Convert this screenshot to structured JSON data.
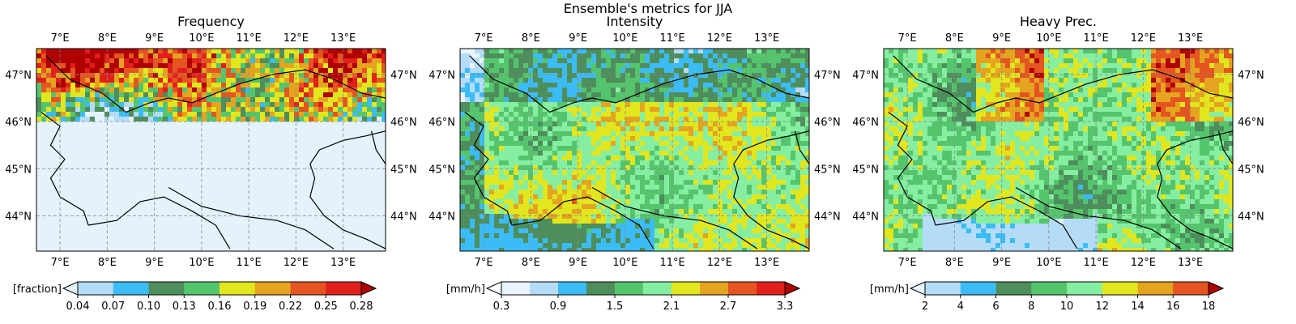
{
  "figure_title": "Ensemble's metrics for JJA",
  "chart_data": [
    {
      "type": "heatmap",
      "title": "Frequency",
      "colorbar_label": "[fraction]",
      "colorbar_ticks": [
        "0.04",
        "0.07",
        "0.10",
        "0.13",
        "0.16",
        "0.19",
        "0.22",
        "0.25",
        "0.28"
      ],
      "colorbar_colors": [
        "#b4dcf7",
        "#3cbcf6",
        "#4e8e5c",
        "#55c56d",
        "#e2e61e",
        "#e4a41f",
        "#e45522",
        "#e21f1b"
      ],
      "colorbar_under": "#e3f2fb",
      "colorbar_over": "#b00000",
      "lon_ticks": [
        "7°E",
        "8°E",
        "9°E",
        "10°E",
        "11°E",
        "12°E",
        "13°E"
      ],
      "lat_ticks": [
        "47°N",
        "46°N",
        "45°N",
        "44°N"
      ],
      "xlim": [
        6.5,
        13.9
      ],
      "ylim": [
        43.25,
        47.55
      ],
      "grid": true
    },
    {
      "type": "heatmap",
      "title": "Intensity",
      "colorbar_label": "[mm/h]",
      "colorbar_ticks": [
        "0.3",
        "0.9",
        "1.5",
        "2.1",
        "2.7",
        "3.3"
      ],
      "colorbar_colors": [
        "#e8f5fc",
        "#b4dcf7",
        "#3cbcf6",
        "#4e8e5c",
        "#55c56d",
        "#86eea0",
        "#e2e61e",
        "#e4a41f",
        "#e45522",
        "#e21f1b"
      ],
      "colorbar_under": "#ffffff",
      "colorbar_over": "#b00000",
      "lon_ticks": [
        "7°E",
        "8°E",
        "9°E",
        "10°E",
        "11°E",
        "12°E",
        "13°E"
      ],
      "lat_ticks": [
        "47°N",
        "46°N",
        "45°N",
        "44°N"
      ],
      "xlim": [
        6.5,
        13.9
      ],
      "ylim": [
        43.25,
        47.55
      ],
      "grid": true
    },
    {
      "type": "heatmap",
      "title": "Heavy Prec.",
      "colorbar_label": "[mm/h]",
      "colorbar_ticks": [
        "2",
        "4",
        "6",
        "8",
        "10",
        "12",
        "14",
        "16",
        "18"
      ],
      "colorbar_colors": [
        "#b4dcf7",
        "#3cbcf6",
        "#4e8e5c",
        "#55c56d",
        "#86eea0",
        "#e2e61e",
        "#e4a41f",
        "#e45522"
      ],
      "colorbar_under": "#e3f2fb",
      "colorbar_over": "#b00000",
      "lon_ticks": [
        "7°E",
        "8°E",
        "9°E",
        "10°E",
        "11°E",
        "12°E",
        "13°E"
      ],
      "lat_ticks": [
        "47°N",
        "46°N",
        "45°N",
        "44°N"
      ],
      "xlim": [
        6.5,
        13.9
      ],
      "ylim": [
        43.25,
        47.55
      ],
      "grid": true
    }
  ]
}
